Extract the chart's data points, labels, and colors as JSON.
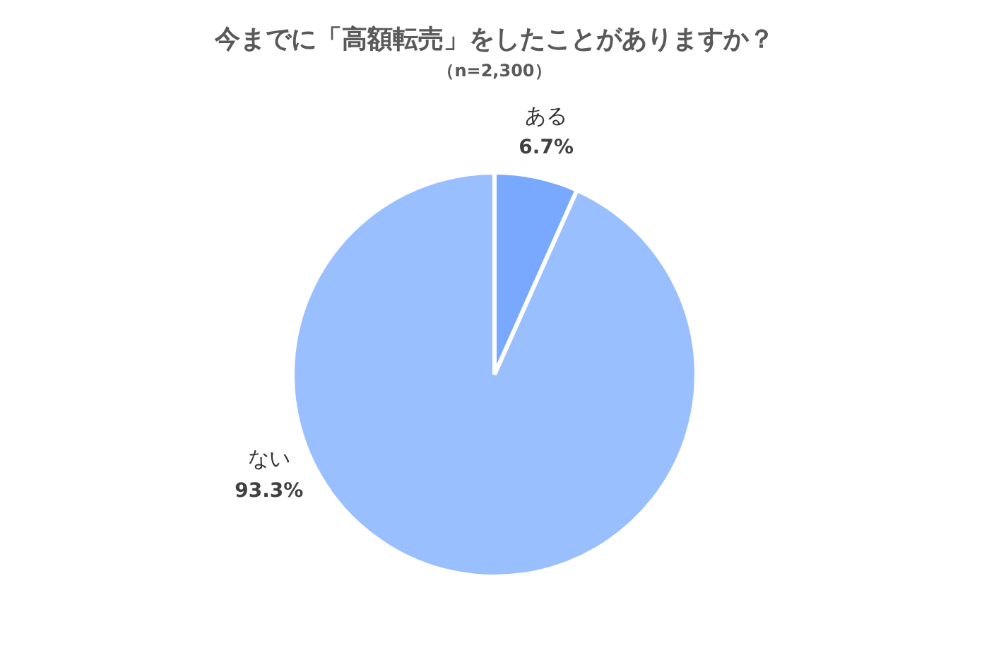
{
  "chart_data": {
    "type": "pie",
    "title": "今までに「高額転売」をしたことがありますか？",
    "subtitle": "（n=2,300）",
    "categories": [
      "ある",
      "ない"
    ],
    "values": [
      6.7,
      93.3
    ],
    "colors": [
      "#78a9ff",
      "#99bfff"
    ],
    "value_labels": [
      "6.7%",
      "93.3%"
    ]
  }
}
